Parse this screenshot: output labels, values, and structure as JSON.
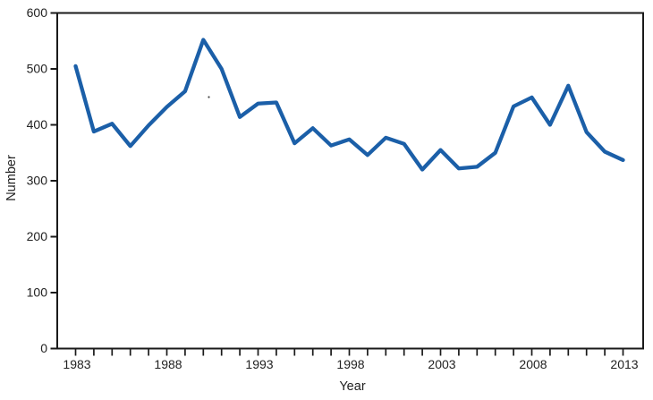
{
  "chart_data": {
    "type": "line",
    "title": "",
    "xlabel": "Year",
    "ylabel": "Number",
    "x": [
      1983,
      1984,
      1985,
      1986,
      1987,
      1988,
      1989,
      1990,
      1991,
      1992,
      1993,
      1994,
      1995,
      1996,
      1997,
      1998,
      1999,
      2000,
      2001,
      2002,
      2003,
      2004,
      2005,
      2006,
      2007,
      2008,
      2009,
      2010,
      2011,
      2012,
      2013
    ],
    "values": [
      505,
      388,
      402,
      362,
      399,
      432,
      460,
      552,
      500,
      414,
      438,
      440,
      367,
      394,
      363,
      374,
      346,
      377,
      366,
      320,
      355,
      322,
      325,
      350,
      433,
      449,
      400,
      470,
      387,
      352,
      337
    ],
    "xticks_labeled": [
      1983,
      1988,
      1993,
      1998,
      2003,
      2008,
      2013
    ],
    "yticks": [
      0,
      100,
      200,
      300,
      400,
      500,
      600
    ],
    "xlim": [
      1983,
      2013
    ],
    "ylim": [
      0,
      600
    ],
    "grid": false,
    "legend_position": "none",
    "line_color": "#1b5fa8",
    "axis_color": "#1a1a1a",
    "text_color": "#222222",
    "background_color": "#ffffff"
  }
}
